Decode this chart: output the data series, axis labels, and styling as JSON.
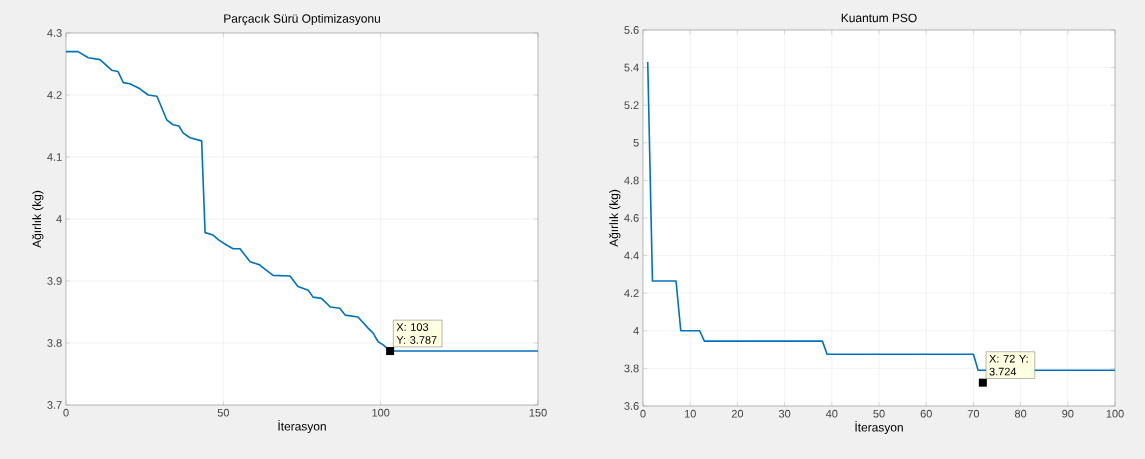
{
  "chart_data": [
    {
      "type": "line",
      "title": "Parçacık Sürü Optimizasyonu",
      "xlabel": "İterasyon",
      "ylabel": "Ağırlık (kg)",
      "color": "#0072bd",
      "grid": true,
      "x": [
        0,
        3.8,
        7.1,
        10.8,
        14.5,
        16.5,
        18.2,
        20.3,
        23.5,
        26.1,
        28.9,
        32,
        34,
        35.9,
        37.2,
        39.4,
        43.1,
        44.2,
        46.7,
        48.6,
        51,
        53.1,
        55.3,
        58.5,
        61.6,
        62.2,
        65.8,
        71.2,
        73.7,
        77,
        78.5,
        81.2,
        84,
        87,
        88.7,
        92.8,
        96,
        97.6,
        99.2,
        100.8,
        103,
        150
      ],
      "values": [
        4.27,
        4.27,
        4.26,
        4.257,
        4.24,
        4.238,
        4.22,
        4.218,
        4.21,
        4.2,
        4.198,
        4.16,
        4.152,
        4.15,
        4.139,
        4.131,
        4.126,
        3.978,
        3.974,
        3.966,
        3.958,
        3.952,
        3.952,
        3.931,
        3.926,
        3.923,
        3.909,
        3.908,
        3.891,
        3.885,
        3.874,
        3.872,
        3.858,
        3.856,
        3.845,
        3.842,
        3.824,
        3.816,
        3.802,
        3.797,
        3.787,
        3.787
      ],
      "xlim": [
        0,
        150
      ],
      "ylim": [
        3.7,
        4.3
      ],
      "xticks": [
        0,
        50,
        100,
        150
      ],
      "yticks": [
        3.7,
        3.8,
        3.9,
        4,
        4.1,
        4.2,
        4.3
      ],
      "annotations": [
        {
          "text": "X: 103 Y: 3.787",
          "x": 103,
          "y": 3.787
        }
      ]
    },
    {
      "type": "line",
      "title": "Kuantum PSO",
      "xlabel": "İterasyon",
      "ylabel": "Ağırlık (kg)",
      "color": "#0072bd",
      "grid": true,
      "x": [
        1,
        2,
        7,
        8,
        12,
        13,
        38,
        39,
        70,
        71,
        72,
        100
      ],
      "values": [
        5.43,
        4.265,
        4.265,
        4.0,
        4.0,
        3.945,
        3.945,
        3.875,
        3.875,
        3.79,
        3.79,
        3.79
      ],
      "xlim": [
        0,
        100
      ],
      "ylim": [
        3.6,
        5.6
      ],
      "xticks": [
        0,
        10,
        20,
        30,
        40,
        50,
        60,
        70,
        80,
        90,
        100
      ],
      "yticks": [
        3.6,
        3.8,
        4,
        4.2,
        4.4,
        4.6,
        4.8,
        5,
        5.2,
        5.4,
        5.6
      ],
      "annotations": [
        {
          "text": "X: 72 Y: 3.724",
          "x": 72,
          "y": 3.724
        }
      ]
    }
  ]
}
